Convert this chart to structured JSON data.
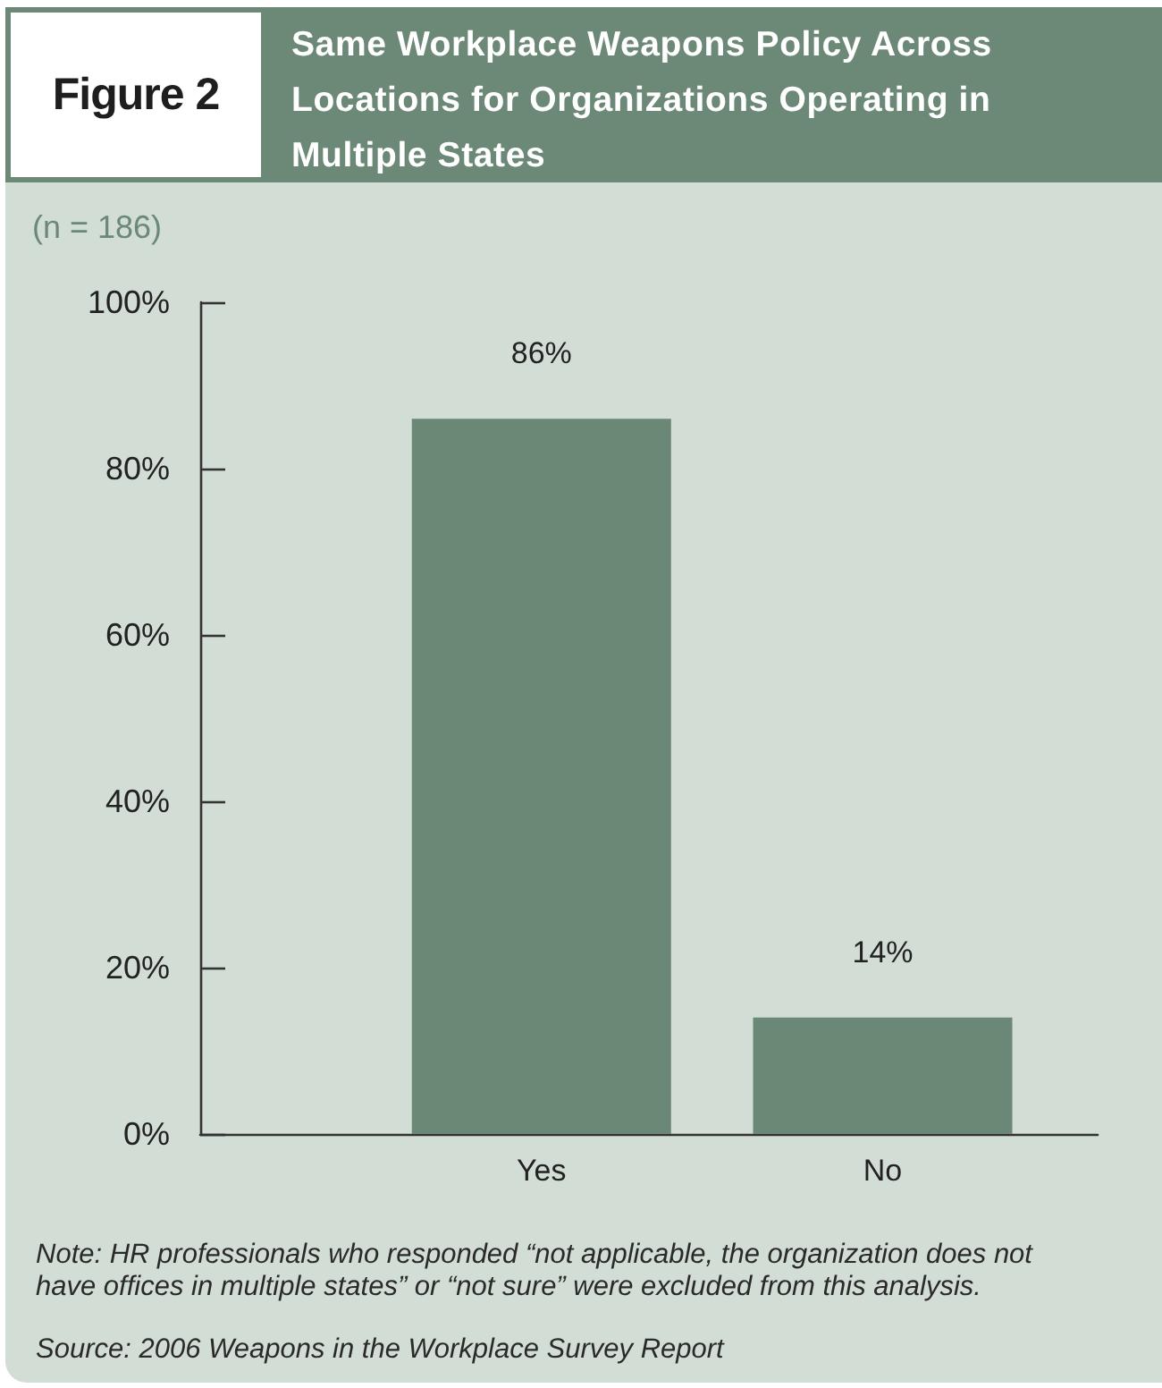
{
  "chart_data": {
    "type": "bar",
    "title": "Same Workplace Weapons Policy Across Locations for Organizations Operating in Multiple States",
    "subtitle": "(n = 186)",
    "categories": [
      "Yes",
      "No"
    ],
    "values": [
      86,
      14
    ],
    "value_labels": [
      "86%",
      "14%"
    ],
    "color": "#6b8876",
    "ylim": [
      0,
      100
    ],
    "yticks": [
      {
        "value": 0,
        "label": "0%"
      },
      {
        "value": 20,
        "label": "20%"
      },
      {
        "value": 40,
        "label": "40%"
      },
      {
        "value": 60,
        "label": "60%"
      },
      {
        "value": 80,
        "label": "80%"
      },
      {
        "value": 100,
        "label": "100%"
      }
    ],
    "annotations": [
      "Figure 2",
      "Note: HR professionals who responded “not applicable, the organization does not have offices in multiple states” or “not sure” were excluded from this analysis.",
      "Source: 2006 Weapons in the Workplace Survey Report"
    ]
  }
}
